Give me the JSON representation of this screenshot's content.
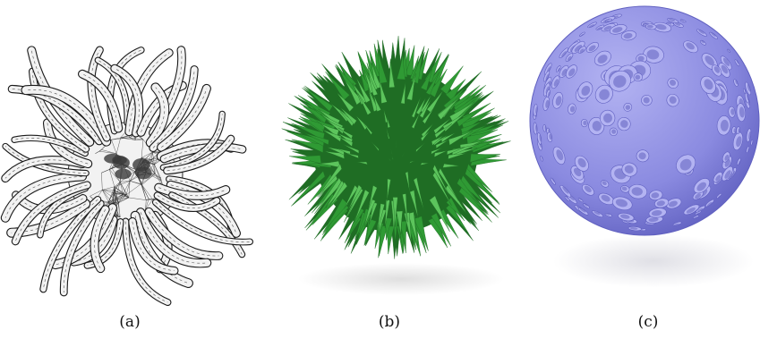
{
  "figure": {
    "panels": [
      {
        "caption": "(a)",
        "icon": "wireframe-mesh-tentacles",
        "colors": {
          "fill": "#f2f2f2",
          "stroke": "#2a2a2a",
          "edge": "#1a1a1a"
        }
      },
      {
        "caption": "(b)",
        "icon": "green-spiky-sphere",
        "colors": {
          "fill": "#2f9a34",
          "dark": "#1f6d24",
          "light": "#5cc45c",
          "shadow": "#dcdcdc"
        }
      },
      {
        "caption": "(c)",
        "icon": "purple-cratered-sphere",
        "colors": {
          "fill": "#8a8ae0",
          "dark": "#6060c0",
          "light": "#b3b3f2",
          "shadow": "#e0e0e6"
        }
      }
    ]
  }
}
